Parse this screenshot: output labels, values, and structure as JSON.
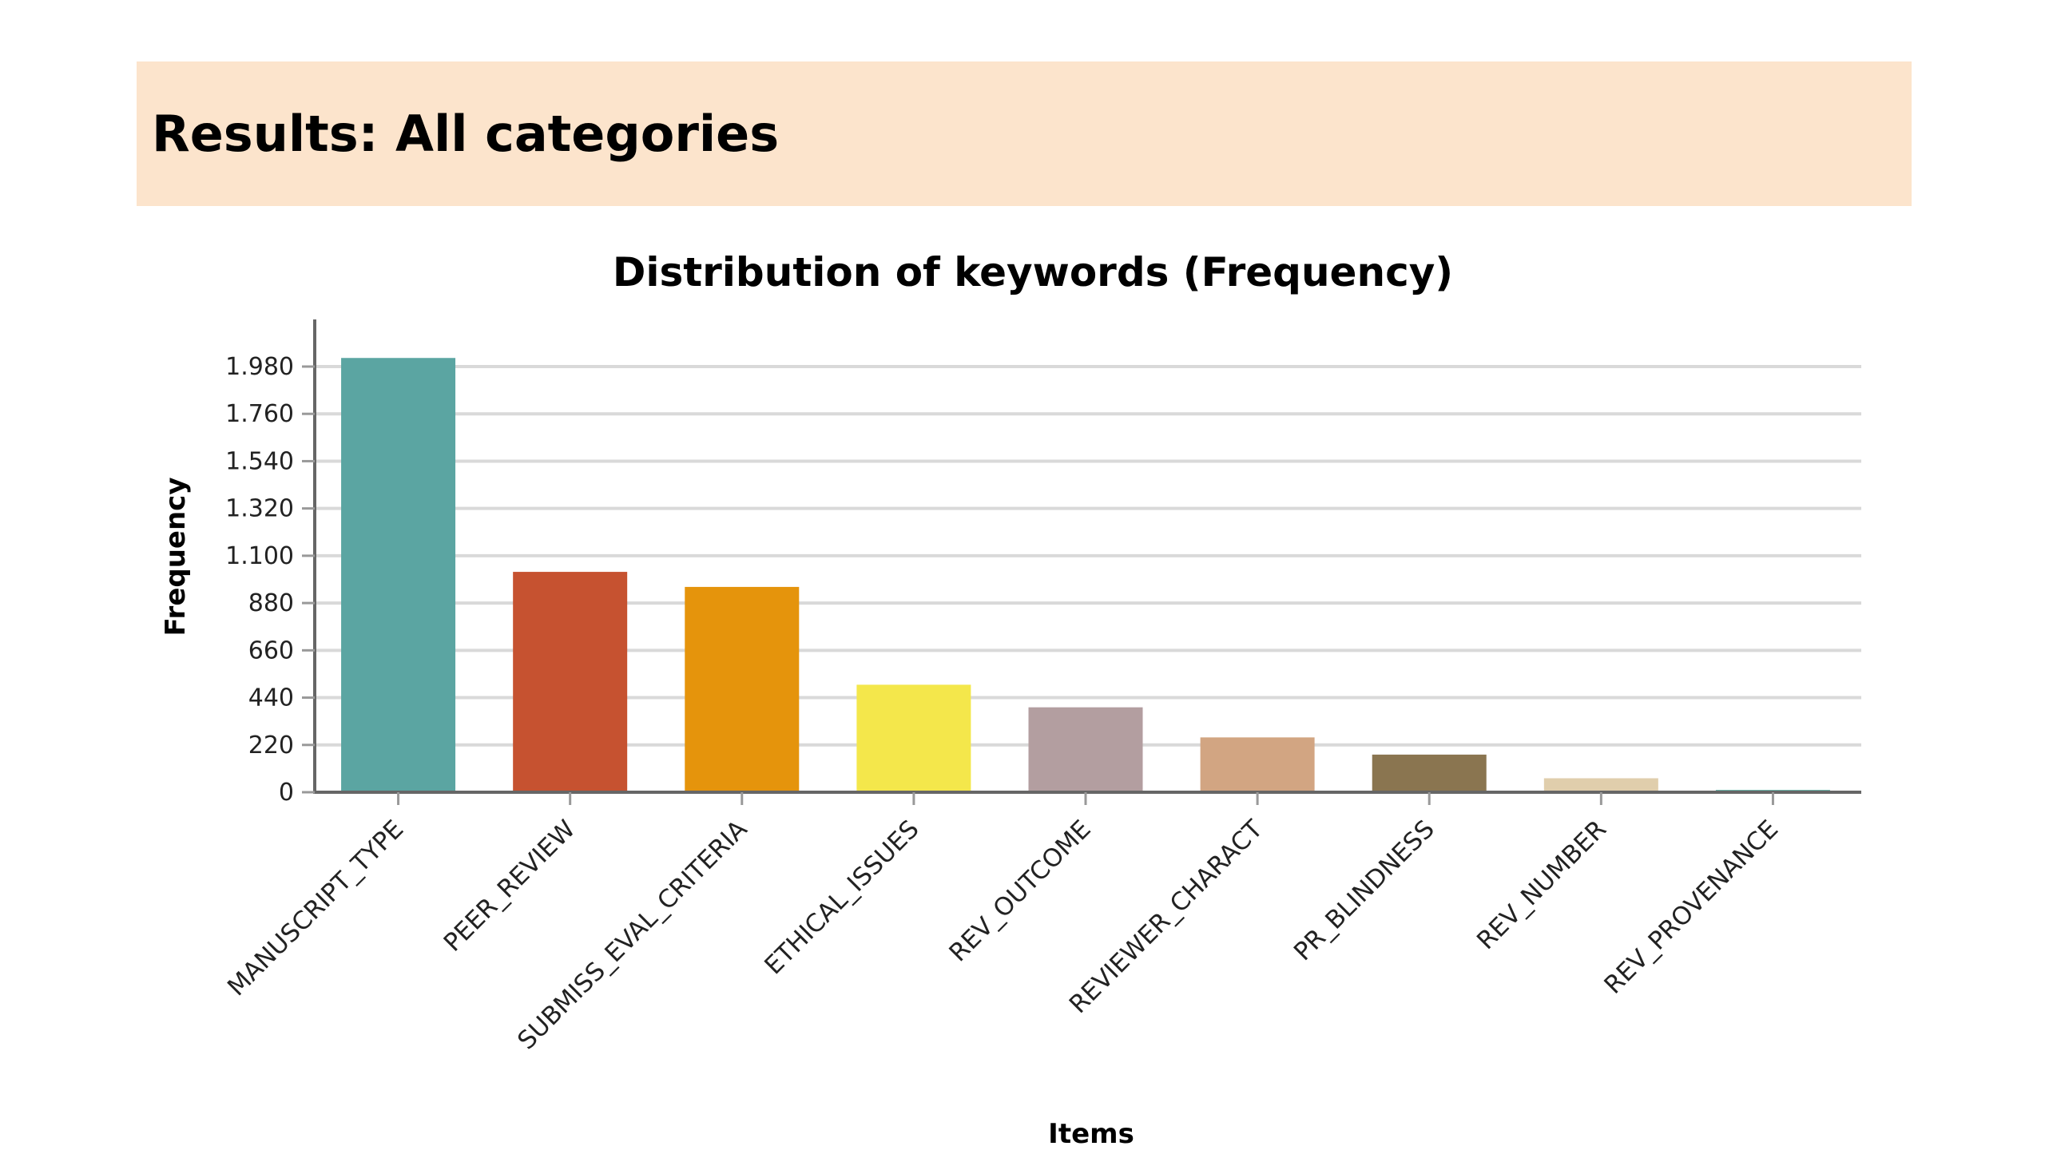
{
  "header": {
    "title": "Results: All categories"
  },
  "chart_data": {
    "type": "bar",
    "title": "Distribution of keywords (Frequency)",
    "xlabel": "Items",
    "ylabel": "Frequency",
    "categories": [
      "MANUSCRIPT_TYPE",
      "PEER_REVIEW",
      "SUBMISS_EVAL_CRITERIA",
      "ETHICAL_ISSUES",
      "REV_OUTCOME",
      "REVIEWER_CHARACT",
      "PR_BLINDNESS",
      "REV_NUMBER",
      "REV_PROVENANCE"
    ],
    "values": [
      2020,
      1025,
      955,
      500,
      395,
      255,
      175,
      65,
      10
    ],
    "colors": [
      "#5ba5a2",
      "#c65230",
      "#e5940c",
      "#f4e74b",
      "#b39ea0",
      "#d2a582",
      "#8a7550",
      "#e0ceac",
      "#2f9988"
    ],
    "yticks": [
      0,
      220,
      440,
      660,
      880,
      1100,
      1320,
      1540,
      1760,
      1980
    ],
    "ytick_labels": [
      "0",
      "220",
      "440",
      "660",
      "880",
      "1.100",
      "1.320",
      "1.540",
      "1.760",
      "1.980"
    ],
    "ylim": [
      0,
      2200
    ],
    "grid": true,
    "legend": "none"
  }
}
